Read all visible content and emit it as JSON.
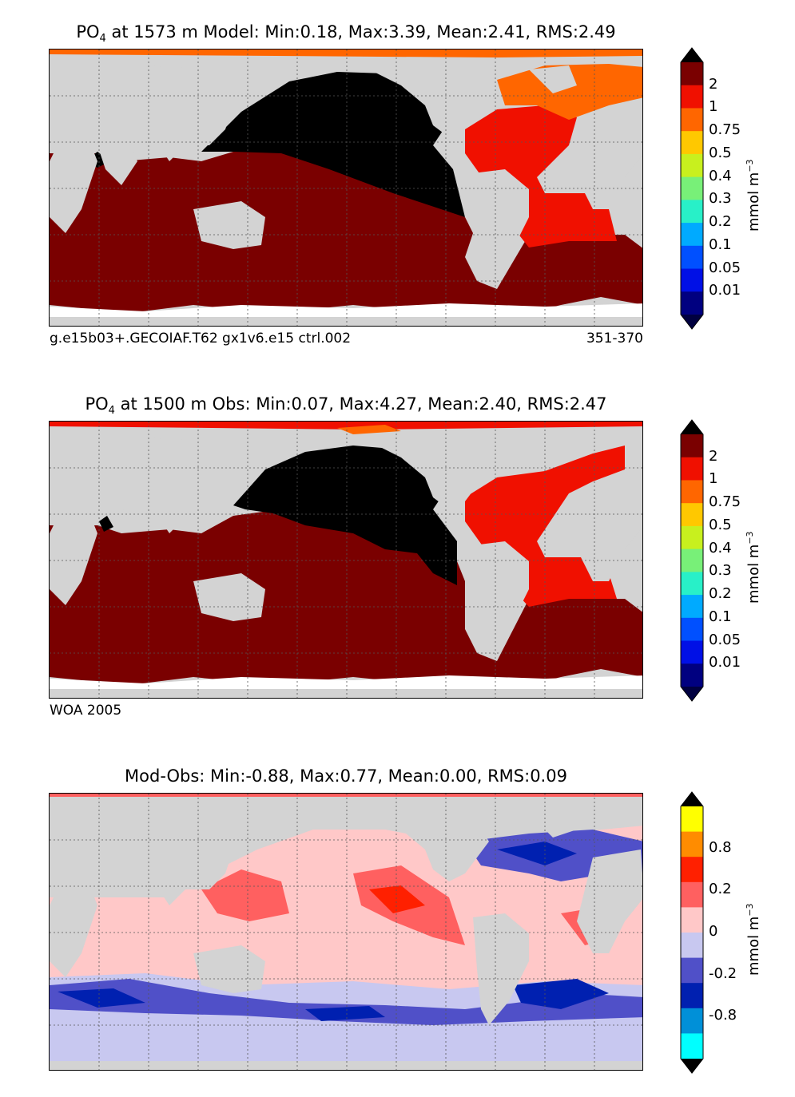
{
  "panels": [
    {
      "title_prefix": "PO",
      "title_sub": "4",
      "title_rest": " at 1573 m Model: Min:0.18, Max:3.39, Mean:2.41, RMS:2.49",
      "caption_left": "g.e15b03+.GECOIAF.T62 gx1v6.e15 ctrl.002",
      "caption_right": "351-370",
      "colorbar": {
        "ticks": [
          "2",
          "1",
          "0.75",
          "0.5",
          "0.4",
          "0.3",
          "0.2",
          "0.1",
          "0.05",
          "0.01"
        ],
        "colors": [
          "#7a0000",
          "#f01000",
          "#ff6600",
          "#ffc800",
          "#c8f01e",
          "#78f078",
          "#28f0c8",
          "#00aaff",
          "#0050ff",
          "#0010e6",
          "#000080"
        ],
        "over_color": "#000000",
        "under_color": "#000040",
        "unit": "mmol m",
        "unit_sup": "−3"
      }
    },
    {
      "title_prefix": "PO",
      "title_sub": "4",
      "title_rest": " at 1500 m Obs: Min:0.07, Max:4.27, Mean:2.40, RMS:2.47",
      "caption_left": "WOA 2005",
      "caption_right": "",
      "colorbar": {
        "ticks": [
          "2",
          "1",
          "0.75",
          "0.5",
          "0.4",
          "0.3",
          "0.2",
          "0.1",
          "0.05",
          "0.01"
        ],
        "colors": [
          "#7a0000",
          "#f01000",
          "#ff6600",
          "#ffc800",
          "#c8f01e",
          "#78f078",
          "#28f0c8",
          "#00aaff",
          "#0050ff",
          "#0010e6",
          "#000080"
        ],
        "over_color": "#000000",
        "under_color": "#000040",
        "unit": "mmol m",
        "unit_sup": "−3"
      }
    },
    {
      "title_prefix": "",
      "title_sub": "",
      "title_rest": "Mod-Obs: Min:-0.88, Max:0.77, Mean:0.00, RMS:0.09",
      "caption_left": "",
      "caption_right": "",
      "colorbar": {
        "ticks": [
          "0.8",
          "0.2",
          "0",
          "-0.2",
          "-0.8"
        ],
        "colors": [
          "#ffff00",
          "#ff8c00",
          "#ff2000",
          "#ff6060",
          "#ffc8c8",
          "#c8c8f0",
          "#5050c8",
          "#0020b0",
          "#0090d8",
          "#00ffff"
        ],
        "over_color": "#000000",
        "under_color": "#000000",
        "unit": "mmol m",
        "unit_sup": "−3"
      }
    }
  ],
  "map_colors": {
    "land": "#d3d3d3",
    "missing": "#ffffff",
    "grid": "#555555"
  }
}
